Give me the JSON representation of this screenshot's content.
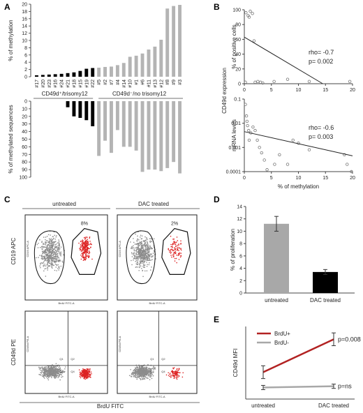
{
  "panels": {
    "A": "A",
    "B": "B",
    "C": "C",
    "D": "D",
    "E": "E"
  },
  "chart_data": [
    {
      "id": "A-top",
      "type": "bar",
      "ylabel": "% of methylation",
      "ylim": [
        0,
        20
      ],
      "yticks": [
        "0",
        "2",
        "4",
        "6",
        "8",
        "10",
        "12",
        "14",
        "16",
        "18",
        "20"
      ],
      "categories": [
        "#17",
        "#20",
        "#23",
        "#16",
        "#24",
        "#21",
        "#18",
        "#15",
        "#19",
        "#22",
        "#5",
        "#2",
        "#7",
        "#4",
        "#14",
        "#10",
        "#1",
        "#6",
        "#11",
        "#13",
        "#12",
        "#8",
        "#9",
        "#3"
      ],
      "values": [
        0.4,
        0.5,
        0.6,
        0.7,
        0.8,
        1.0,
        1.2,
        1.6,
        2.2,
        2.4,
        2.5,
        2.7,
        2.8,
        3.2,
        3.8,
        5.5,
        5.8,
        6.4,
        7.5,
        8.3,
        10.2,
        18.8,
        19.5,
        19.8
      ],
      "group_labels": [
        "CD49d⁺/trisomy12",
        "CD49d⁻/no trisomy12"
      ],
      "group_colors": [
        "#000000",
        "#b4b4b4"
      ],
      "group_split": 10
    },
    {
      "id": "A-bottom",
      "type": "bar",
      "ylabel": "% of methylated sequences",
      "ylim": [
        0,
        100
      ],
      "yticks": [
        "0",
        "10",
        "20",
        "30",
        "40",
        "50",
        "60",
        "70",
        "80",
        "90",
        "100"
      ],
      "values": [
        0,
        0,
        0,
        0,
        0,
        8,
        20,
        22,
        25,
        33,
        72,
        52,
        68,
        38,
        60,
        60,
        65,
        93,
        90,
        90,
        92,
        88,
        80,
        95
      ]
    },
    {
      "id": "B-top",
      "type": "scatter",
      "ylabel": "% of positive cells",
      "ylim": [
        0,
        100
      ],
      "xlim": [
        0,
        20
      ],
      "yticks": [
        "0",
        "20",
        "40",
        "60",
        "80",
        "100"
      ],
      "xticks": [
        "0",
        "5",
        "10",
        "15",
        "20"
      ],
      "points": [
        [
          0.3,
          96
        ],
        [
          0.7,
          92
        ],
        [
          1.1,
          98
        ],
        [
          0.9,
          90
        ],
        [
          1.5,
          95
        ],
        [
          1.8,
          58
        ],
        [
          0.2,
          2
        ],
        [
          2.5,
          3
        ],
        [
          3,
          2
        ],
        [
          3.4,
          1
        ],
        [
          5.5,
          3
        ],
        [
          8,
          6
        ],
        [
          12,
          3
        ],
        [
          19.5,
          3
        ],
        [
          2,
          2
        ]
      ],
      "fit": [
        [
          0,
          63
        ],
        [
          14.5,
          0
        ]
      ],
      "stats": [
        "rho= -0.7",
        "p= 0.002"
      ]
    },
    {
      "id": "B-bottom",
      "type": "scatter",
      "ylabel": "mRNA levels",
      "xlabel": "% of methylation",
      "log_y": true,
      "ylim": [
        0.0001,
        0.1
      ],
      "xlim": [
        0,
        20
      ],
      "yticks": [
        "0.0001",
        "0.001",
        "0.01",
        "0.1"
      ],
      "xticks": [
        "0",
        "5",
        "10",
        "15",
        "20"
      ],
      "points": [
        [
          0.2,
          0.06
        ],
        [
          0.4,
          0.02
        ],
        [
          0.5,
          0.012
        ],
        [
          0.6,
          0.008
        ],
        [
          0.8,
          0.005
        ],
        [
          0.9,
          0.002
        ],
        [
          1.2,
          0.004
        ],
        [
          1.6,
          0.007
        ],
        [
          2,
          0.005
        ],
        [
          2.4,
          0.002
        ],
        [
          2.8,
          0.001
        ],
        [
          3.2,
          0.0006
        ],
        [
          3.7,
          0.0003
        ],
        [
          4.2,
          0.00012
        ],
        [
          5.6,
          0.0002
        ],
        [
          6.5,
          0.0005
        ],
        [
          8,
          0.0002
        ],
        [
          9,
          0.002
        ],
        [
          10,
          0.0015
        ],
        [
          12,
          0.0008
        ],
        [
          18.5,
          0.0005
        ],
        [
          19,
          0.0002
        ],
        [
          19.8,
          0.0001
        ]
      ],
      "fit": [
        [
          0,
          0.0045
        ],
        [
          20,
          0.00045
        ]
      ],
      "stats": [
        "rho= -0.6",
        "p= 0.003"
      ]
    },
    {
      "id": "D",
      "type": "bar",
      "ylabel": "% of proliferation",
      "ylim": [
        0,
        14
      ],
      "yticks": [
        "0",
        "2",
        "4",
        "6",
        "8",
        "10",
        "12",
        "14"
      ],
      "categories": [
        "untreated",
        "DAC treated"
      ],
      "values": [
        11.2,
        3.4
      ],
      "errors": [
        1.2,
        0.4
      ],
      "colors": [
        "#a8a8a8",
        "#000000"
      ]
    },
    {
      "id": "E",
      "type": "line",
      "ylabel": "CD49d MFI",
      "ylim": [
        80,
        250
      ],
      "categories": [
        "untreated",
        "DAC treated"
      ],
      "series": [
        {
          "name": "BrdU+",
          "values": [
            143,
            220
          ],
          "errors": [
            15,
            15
          ],
          "color": "#b22222"
        },
        {
          "name": "BrdU-",
          "values": [
            107,
            110
          ],
          "errors": [
            5,
            5
          ],
          "color": "#a8a8a8"
        }
      ],
      "annotations": [
        "p=0.008",
        "p=ns"
      ]
    }
  ],
  "shared": {
    "cd49d_expression": "CD49d expression",
    "untreated": "untreated",
    "dac": "DAC treated",
    "cd19": "CD19 APC",
    "cd49dpe": "CD49d PE",
    "brdu": "BrdU FITC",
    "gate1": "8%",
    "gate2": "2%",
    "quads": [
      "Q1",
      "Q2",
      "Q3",
      "Q4"
    ],
    "x_axis_small": "BrdU FITC-A",
    "y_axis_small_top": "CD19 APC-A",
    "y_axis_small_bot": "CD49d PE-A"
  }
}
